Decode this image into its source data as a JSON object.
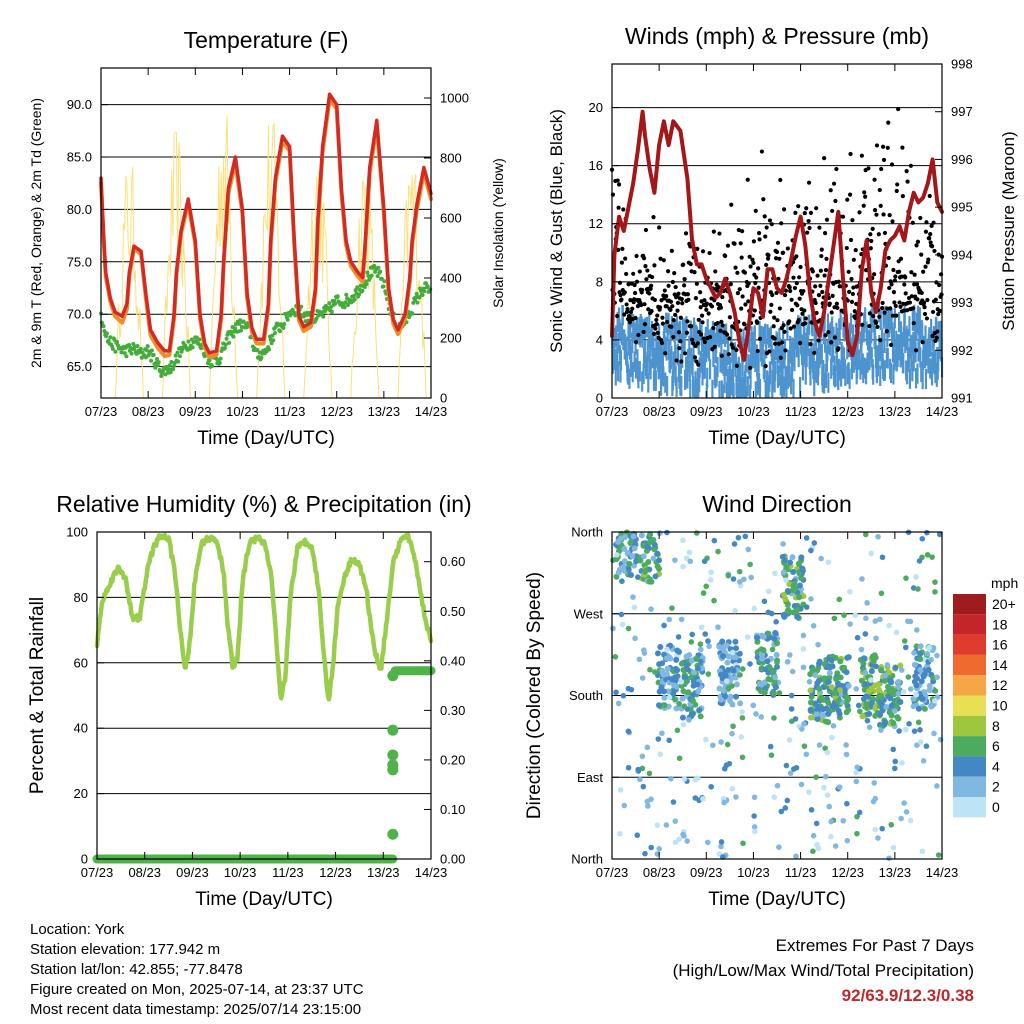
{
  "chart_data": [
    {
      "type": "line",
      "title": "Temperature (F)",
      "xlabel": "Time (Day/UTC)",
      "ylabel": "2m & 9m T (Red, Orange) & 2m Td (Green)",
      "y2label": "Solar Insolation (Yellow)",
      "x_ticks": [
        "07/23",
        "08/23",
        "09/23",
        "10/23",
        "11/23",
        "12/23",
        "13/23",
        "14/23"
      ],
      "ylim": [
        62,
        93.5
      ],
      "y_ticks": [
        "65.0",
        "70.0",
        "75.0",
        "80.0",
        "85.0",
        "90.0"
      ],
      "y_tick_values": [
        65,
        70,
        75,
        80,
        85,
        90
      ],
      "y2lim": [
        0,
        1100
      ],
      "y2_ticks": [
        "0",
        "200",
        "400",
        "600",
        "800",
        "1000"
      ],
      "y2_tick_values": [
        0,
        200,
        400,
        600,
        800,
        1000
      ],
      "grid": "horizontal",
      "colors": {
        "t2m": "#d42a24",
        "t9m": "#ee8e2a",
        "td": "#44ac3c",
        "solar": "#fbe07a"
      },
      "series": [
        {
          "key": "t2m",
          "x": [
            0,
            0.05,
            0.1,
            0.2,
            0.3,
            0.45,
            0.55,
            0.6,
            0.7,
            0.85,
            0.95,
            1.05,
            1.2,
            1.35,
            1.45,
            1.55,
            1.6,
            1.7,
            1.85,
            2.0,
            2.1,
            2.2,
            2.3,
            2.45,
            2.55,
            2.6,
            2.7,
            2.85,
            3.0,
            3.1,
            3.2,
            3.3,
            3.45,
            3.55,
            3.6,
            3.7,
            3.85,
            4.0,
            4.1,
            4.2,
            4.3,
            4.45,
            4.55,
            4.6,
            4.7,
            4.85,
            5.0,
            5.1,
            5.2,
            5.3,
            5.45,
            5.55,
            5.6,
            5.7,
            5.85,
            6.0,
            6.1,
            6.2,
            6.3,
            6.45,
            6.55,
            6.6,
            6.7,
            6.85,
            7.0
          ],
          "y": [
            83,
            78,
            74,
            71.5,
            70.2,
            69.8,
            71,
            74,
            76.5,
            76,
            72,
            68.5,
            67.3,
            66.5,
            66.5,
            70,
            74,
            78,
            81,
            77,
            70,
            67.2,
            66.3,
            66.5,
            70,
            75,
            82,
            85,
            80,
            72,
            68.7,
            67.6,
            67.6,
            71,
            77,
            83,
            87,
            86,
            77,
            69.8,
            68.8,
            69.2,
            72.5,
            79,
            86,
            91,
            90,
            82,
            77,
            75,
            74,
            73.5,
            76.5,
            84,
            88.5,
            80,
            72.5,
            69.5,
            68.5,
            70,
            73.5,
            77,
            80.5,
            84,
            81.5
          ]
        },
        {
          "key": "t9m",
          "x": [
            0,
            0.05,
            0.1,
            0.2,
            0.3,
            0.45,
            0.55,
            0.6,
            0.7,
            0.85,
            0.95,
            1.05,
            1.2,
            1.35,
            1.45,
            1.55,
            1.6,
            1.7,
            1.85,
            2.0,
            2.1,
            2.2,
            2.3,
            2.45,
            2.55,
            2.6,
            2.7,
            2.85,
            3.0,
            3.1,
            3.2,
            3.3,
            3.45,
            3.55,
            3.6,
            3.7,
            3.85,
            4.0,
            4.1,
            4.2,
            4.3,
            4.45,
            4.55,
            4.6,
            4.7,
            4.85,
            5.0,
            5.1,
            5.2,
            5.3,
            5.45,
            5.55,
            5.6,
            5.7,
            5.85,
            6.0,
            6.1,
            6.2,
            6.3,
            6.45,
            6.55,
            6.6,
            6.7,
            6.85,
            7.0
          ],
          "y": [
            82.5,
            77.5,
            73.6,
            71.2,
            69.8,
            69.2,
            70.5,
            73.6,
            76.3,
            75.7,
            71.6,
            68,
            66.8,
            66,
            66.1,
            69.6,
            73.7,
            77.7,
            80.6,
            76.7,
            69.6,
            66.8,
            65.9,
            66.1,
            69.6,
            74.7,
            81.5,
            84.5,
            79.6,
            71.6,
            68.3,
            67.2,
            67.2,
            70.6,
            76.6,
            82.6,
            86.5,
            85.6,
            76.6,
            69.4,
            68.4,
            68.8,
            72.1,
            78.6,
            85.5,
            90.5,
            89.6,
            81.6,
            76.6,
            74.6,
            73.6,
            73.1,
            76.1,
            83.5,
            88,
            79.6,
            72.1,
            69.1,
            68.1,
            69.6,
            73.1,
            76.6,
            80,
            83.5,
            81
          ]
        },
        {
          "key": "td",
          "x": [
            0,
            0.15,
            0.3,
            0.5,
            0.7,
            0.85,
            1.0,
            1.15,
            1.3,
            1.5,
            1.7,
            1.85,
            2.0,
            2.15,
            2.3,
            2.5,
            2.7,
            2.85,
            3.0,
            3.15,
            3.3,
            3.5,
            3.7,
            3.85,
            4.0,
            4.15,
            4.3,
            4.5,
            4.7,
            4.85,
            5.0,
            5.15,
            5.3,
            5.5,
            5.7,
            5.85,
            6.0,
            6.15,
            6.3,
            6.5,
            6.7,
            6.85,
            7.0
          ],
          "y": [
            70,
            67.5,
            67,
            66.5,
            66.7,
            66.2,
            66.5,
            65.5,
            64.5,
            65,
            66.5,
            67.2,
            67.5,
            67,
            65.5,
            65.7,
            67.7,
            68.7,
            69,
            68.5,
            66,
            66.5,
            68.5,
            69,
            70.2,
            70.5,
            70,
            69.5,
            70,
            70.5,
            71.3,
            71.2,
            71.5,
            72.5,
            73.8,
            74.2,
            72.8,
            70.2,
            68.5,
            69.7,
            71.5,
            72.5,
            72.3
          ]
        }
      ],
      "solar_daily_peak": [
        580,
        840,
        920,
        1050,
        1000,
        930,
        850,
        880
      ]
    },
    {
      "type": "scatter",
      "title": "Winds (mph) & Pressure (mb)",
      "xlabel": "Time (Day/UTC)",
      "ylabel": "Sonic Wind & Gust (Blue, Black)",
      "y2label": "Station Pressure (Maroon)",
      "x_ticks": [
        "07/23",
        "08/23",
        "09/23",
        "10/23",
        "11/23",
        "12/23",
        "13/23",
        "14/23"
      ],
      "ylim": [
        0,
        23
      ],
      "y_ticks": [
        "0",
        "4",
        "8",
        "12",
        "16",
        "20"
      ],
      "y_tick_values": [
        0,
        4,
        8,
        12,
        16,
        20
      ],
      "y2lim": [
        991,
        998
      ],
      "y2_ticks": [
        "991",
        "992",
        "993",
        "994",
        "995",
        "996",
        "997",
        "998"
      ],
      "y2_tick_values": [
        991,
        992,
        993,
        994,
        995,
        996,
        997,
        998
      ],
      "grid": "horizontal",
      "colors": {
        "wind": "#4d94cf",
        "gust": "#000000",
        "pressure": "#a3171a"
      },
      "wind_daily_mean": [
        4.5,
        3.8,
        3.2,
        3.0,
        3.5,
        4.2,
        4.5,
        3.8
      ],
      "gust_daily_max": [
        16,
        12,
        10,
        18,
        15,
        18.5,
        20.5,
        13
      ],
      "pressure": {
        "x": [
          0,
          0.05,
          0.15,
          0.25,
          0.35,
          0.45,
          0.55,
          0.65,
          0.7,
          0.8,
          0.9,
          1.0,
          1.1,
          1.2,
          1.3,
          1.45,
          1.6,
          1.7,
          1.8,
          1.9,
          2.0,
          2.1,
          2.2,
          2.3,
          2.4,
          2.5,
          2.6,
          2.7,
          2.8,
          2.9,
          3.0,
          3.1,
          3.2,
          3.3,
          3.4,
          3.5,
          3.6,
          3.7,
          3.8,
          3.9,
          4.0,
          4.1,
          4.2,
          4.3,
          4.4,
          4.5,
          4.6,
          4.7,
          4.8,
          4.9,
          5.0,
          5.1,
          5.2,
          5.3,
          5.4,
          5.5,
          5.6,
          5.7,
          5.8,
          5.9,
          6.0,
          6.1,
          6.2,
          6.3,
          6.4,
          6.5,
          6.6,
          6.7,
          6.8,
          6.9,
          7.0
        ],
        "y": [
          992.3,
          994,
          994.8,
          994.5,
          995,
          995.5,
          996.2,
          997,
          996.5,
          995.8,
          995.3,
          996.3,
          996.8,
          996.3,
          996.8,
          996.6,
          995.6,
          994.3,
          993.8,
          993.8,
          993.5,
          993.3,
          993.1,
          993.2,
          993.5,
          993.2,
          992.8,
          992.2,
          991.8,
          992.5,
          993.3,
          993.2,
          992.7,
          993.7,
          993.7,
          993.3,
          993.2,
          993.5,
          993.9,
          994.4,
          994.8,
          994.2,
          993.2,
          992.6,
          992.3,
          992.8,
          993.5,
          994.2,
          994.9,
          993.5,
          992.2,
          991.9,
          992.3,
          993.7,
          994.3,
          993.2,
          992.8,
          993.3,
          994.1,
          994.3,
          994.4,
          994.6,
          994.3,
          994.9,
          995.3,
          995.1,
          995.2,
          995.5,
          996.0,
          995.1,
          994.9
        ]
      }
    },
    {
      "type": "line",
      "title": "Relative Humidity (%) & Precipitation (in)",
      "xlabel": "Time (Day/UTC)",
      "ylabel": "Percent & Total Rainfall",
      "x_ticks": [
        "07/23",
        "08/23",
        "09/23",
        "10/23",
        "11/23",
        "12/23",
        "13/23",
        "14/23"
      ],
      "ylim": [
        0,
        100
      ],
      "y_ticks": [
        "0",
        "20",
        "40",
        "60",
        "80",
        "100"
      ],
      "y_tick_values": [
        0,
        20,
        40,
        60,
        80,
        100
      ],
      "y2lim": [
        0,
        0.66
      ],
      "y2_ticks": [
        "0.00",
        "0.10",
        "0.20",
        "0.30",
        "0.40",
        "0.50",
        "0.60"
      ],
      "y2_tick_values": [
        0,
        0.1,
        0.2,
        0.3,
        0.4,
        0.5,
        0.6
      ],
      "grid": "horizontal",
      "colors": {
        "rh": "#9acd4c",
        "precip": "#4fb34a"
      },
      "series": [
        {
          "key": "rh",
          "x": [
            0,
            0.1,
            0.25,
            0.45,
            0.6,
            0.75,
            0.9,
            1.05,
            1.2,
            1.35,
            1.5,
            1.65,
            1.75,
            1.85,
            1.95,
            2.05,
            2.2,
            2.35,
            2.5,
            2.65,
            2.75,
            2.85,
            2.95,
            3.05,
            3.2,
            3.35,
            3.5,
            3.65,
            3.75,
            3.85,
            3.95,
            4.05,
            4.2,
            4.35,
            4.5,
            4.65,
            4.75,
            4.85,
            4.95,
            5.05,
            5.2,
            5.35,
            5.5,
            5.65,
            5.75,
            5.85,
            5.95,
            6.05,
            6.2,
            6.35,
            6.5,
            6.65,
            6.8,
            6.9,
            7.0
          ],
          "y": [
            66,
            78,
            84,
            89,
            86,
            73,
            74,
            88,
            96,
            99,
            98,
            86,
            69,
            57,
            67,
            85,
            97,
            98,
            98,
            88,
            70,
            58,
            62,
            85,
            97,
            98,
            97,
            87,
            68,
            48,
            56,
            80,
            95,
            97,
            96,
            82,
            63,
            48,
            60,
            78,
            87,
            92,
            90,
            82,
            70,
            62,
            58,
            70,
            90,
            97,
            99,
            93,
            80,
            72,
            67
          ]
        },
        {
          "key": "precip",
          "x": [
            0,
            6.2,
            6.2,
            6.21,
            6.22,
            6.23,
            6.24,
            6.25,
            6.3,
            7.0
          ],
          "y": [
            0,
            0,
            0.05,
            0.18,
            0.19,
            0.21,
            0.26,
            0.37,
            0.38,
            0.38
          ]
        }
      ]
    },
    {
      "type": "scatter",
      "title": "Wind Direction",
      "xlabel": "Time (Day/UTC)",
      "ylabel": "Direction (Colored By Speed)",
      "x_ticks": [
        "07/23",
        "08/23",
        "09/23",
        "10/23",
        "11/23",
        "12/23",
        "13/23",
        "14/23"
      ],
      "y_ticks": [
        "North",
        "East",
        "South",
        "West",
        "North"
      ],
      "y_tick_values": [
        0,
        90,
        180,
        270,
        360
      ],
      "ylim": [
        0,
        360
      ],
      "grid": "horizontal",
      "legend": {
        "title": "mph",
        "labels": [
          "20+",
          "18",
          "16",
          "14",
          "12",
          "10",
          "8",
          "6",
          "4",
          "2",
          "0"
        ],
        "colors": [
          "#9e1b1e",
          "#c4252b",
          "#e03c2e",
          "#ef6a2f",
          "#f5a647",
          "#e8df55",
          "#9ec73e",
          "#4cab5e",
          "#4388c4",
          "#80b8e2",
          "#bde3f6"
        ],
        "placement": "right"
      },
      "clusters": [
        {
          "x": 0.3,
          "dir": 345,
          "speed": 4
        },
        {
          "x": 0.8,
          "dir": 340,
          "speed": 5
        },
        {
          "x": 1.2,
          "dir": 200,
          "speed": 3
        },
        {
          "x": 1.7,
          "dir": 190,
          "speed": 4
        },
        {
          "x": 2.5,
          "dir": 205,
          "speed": 3
        },
        {
          "x": 3.3,
          "dir": 215,
          "speed": 4
        },
        {
          "x": 3.85,
          "dir": 300,
          "speed": 5
        },
        {
          "x": 4.4,
          "dir": 185,
          "speed": 5
        },
        {
          "x": 4.8,
          "dir": 190,
          "speed": 5
        },
        {
          "x": 5.5,
          "dir": 190,
          "speed": 6
        },
        {
          "x": 5.9,
          "dir": 180,
          "speed": 5
        },
        {
          "x": 6.6,
          "dir": 200,
          "speed": 3
        }
      ]
    }
  ],
  "footer": {
    "location": "Location: York",
    "elevation": "Station elevation: 177.942 m",
    "latlon": "Station lat/lon: 42.855; -77.8478",
    "created": "Figure created on Mon, 2025-07-14, at 23:37 UTC",
    "latest": "Most recent data timestamp: 2025/07/14 23:15:00",
    "extremes_title": "Extremes For Past 7 Days",
    "extremes_desc": "(High/Low/Max Wind/Total Precipitation)",
    "extremes_values": "92/63.9/12.3/0.38"
  }
}
